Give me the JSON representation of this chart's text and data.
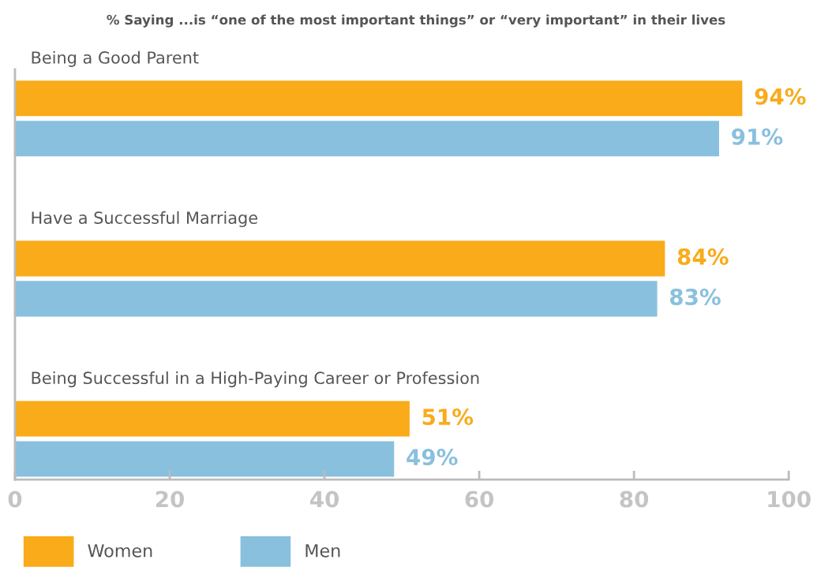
{
  "chart_data": {
    "type": "bar",
    "orientation": "horizontal",
    "title": "% Saying ...is “one of the most important things” or “very important” in their lives",
    "categories": [
      "Being a Good Parent",
      "Have a Successful Marriage",
      "Being Successful in a High-Paying Career or Profession"
    ],
    "series": [
      {
        "name": "Women",
        "color": "#f9ab1a",
        "values": [
          94,
          84,
          51
        ],
        "value_labels": [
          "94%",
          "84%",
          "51%"
        ]
      },
      {
        "name": "Men",
        "color": "#89c0de",
        "values": [
          91,
          83,
          49
        ],
        "value_labels": [
          "91%",
          "83%",
          "49%"
        ]
      }
    ],
    "xlim": [
      0,
      100
    ],
    "xticks": [
      0,
      20,
      40,
      60,
      80,
      100
    ],
    "grid": false,
    "legend": "bottom"
  }
}
